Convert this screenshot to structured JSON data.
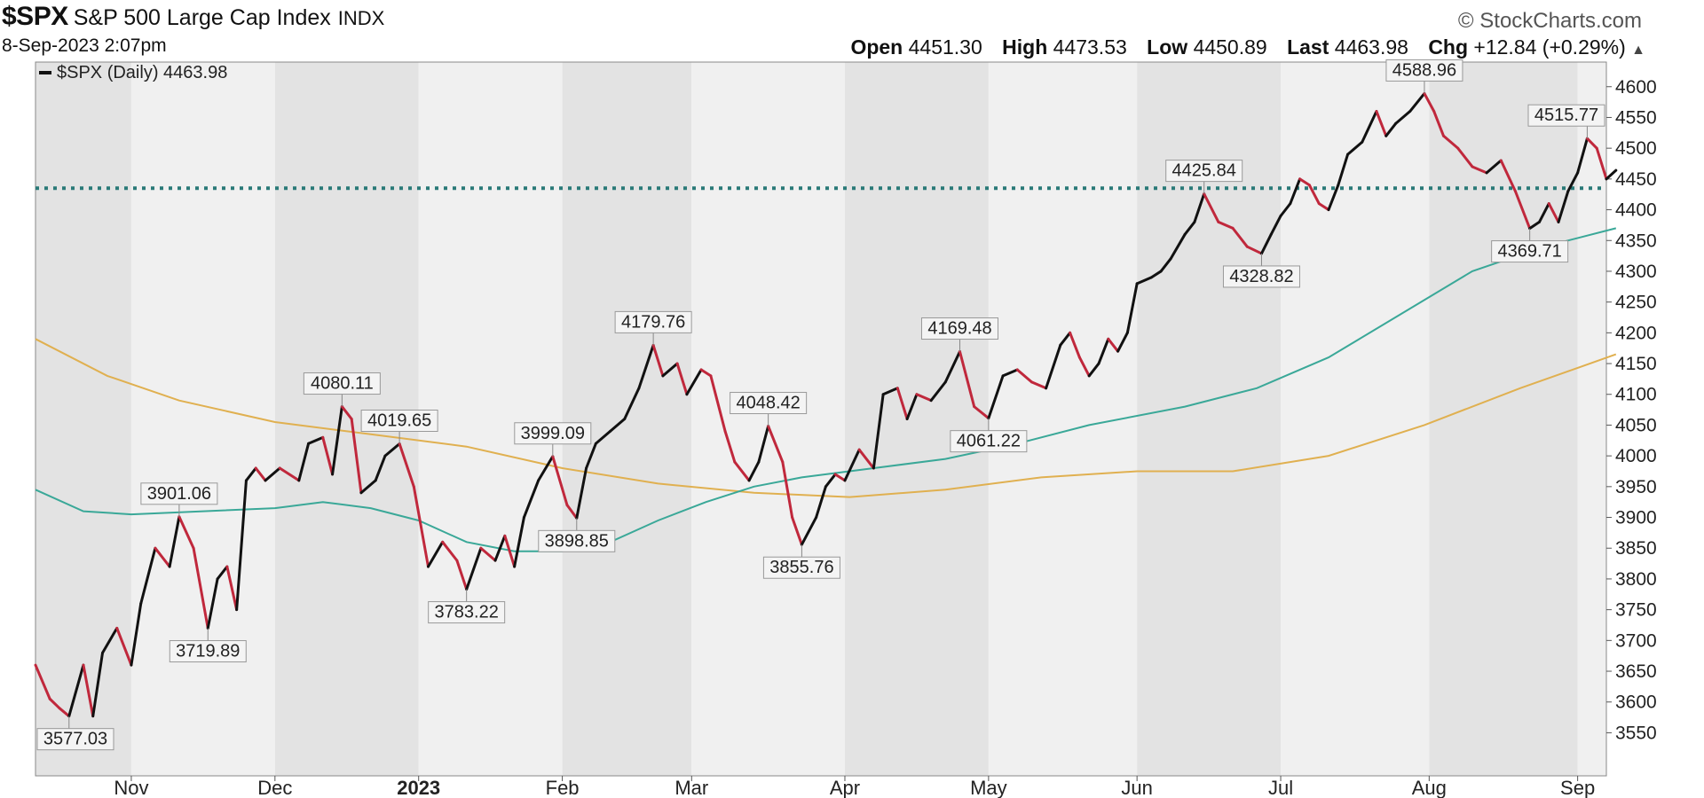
{
  "header": {
    "symbol": "$SPX",
    "name": "S&P 500 Large Cap Index",
    "exchange": "INDX",
    "timestamp": "8-Sep-2023 2:07pm",
    "brand": "© StockCharts.com",
    "open_label": "Open",
    "open": "4451.30",
    "high_label": "High",
    "high": "4473.53",
    "low_label": "Low",
    "low": "4450.89",
    "last_label": "Last",
    "last": "4463.98",
    "chg_label": "Chg",
    "chg": "+12.84 (+0.29%)",
    "chg_arrow": "▲"
  },
  "chart_data": {
    "type": "line",
    "legend": "$SPX (Daily) 4463.98",
    "legend_placement": "top-left",
    "ylim": [
      3480,
      4640
    ],
    "yticks": [
      3550,
      3600,
      3650,
      3700,
      3750,
      3800,
      3850,
      3900,
      3950,
      4000,
      4050,
      4100,
      4150,
      4200,
      4250,
      4300,
      4350,
      4400,
      4450,
      4500,
      4550,
      4600
    ],
    "xlim": [
      0,
      328
    ],
    "months": [
      {
        "label": "Nov",
        "start": 20
      },
      {
        "label": "Dec",
        "start": 50
      },
      {
        "label": "2023",
        "start": 80,
        "bold": true
      },
      {
        "label": "Feb",
        "start": 110
      },
      {
        "label": "Mar",
        "start": 137
      },
      {
        "label": "Apr",
        "start": 169
      },
      {
        "label": "May",
        "start": 199
      },
      {
        "label": "Jun",
        "start": 230
      },
      {
        "label": "Jul",
        "start": 260
      },
      {
        "label": "Aug",
        "start": 291
      },
      {
        "label": "Sep",
        "start": 322
      }
    ],
    "horizontal_line": {
      "value": 4435,
      "color": "#2a7a78",
      "style": "dotted"
    },
    "price": [
      [
        0,
        3660
      ],
      [
        3,
        3605
      ],
      [
        5,
        3590
      ],
      [
        7,
        3577.03
      ],
      [
        10,
        3660
      ],
      [
        12,
        3577
      ],
      [
        14,
        3680
      ],
      [
        17,
        3720
      ],
      [
        20,
        3660
      ],
      [
        22,
        3760
      ],
      [
        25,
        3850
      ],
      [
        28,
        3820
      ],
      [
        30,
        3901.06
      ],
      [
        33,
        3850
      ],
      [
        36,
        3719.89
      ],
      [
        38,
        3800
      ],
      [
        40,
        3820
      ],
      [
        42,
        3750
      ],
      [
        44,
        3960
      ],
      [
        46,
        3980
      ],
      [
        48,
        3960
      ],
      [
        51,
        3980
      ],
      [
        55,
        3960
      ],
      [
        57,
        4020
      ],
      [
        60,
        4030
      ],
      [
        62,
        3970
      ],
      [
        64,
        4080.11
      ],
      [
        66,
        4060
      ],
      [
        68,
        3940
      ],
      [
        71,
        3960
      ],
      [
        73,
        4000
      ],
      [
        76,
        4019.65
      ],
      [
        79,
        3950
      ],
      [
        82,
        3820
      ],
      [
        85,
        3860
      ],
      [
        88,
        3830
      ],
      [
        90,
        3783.22
      ],
      [
        93,
        3850
      ],
      [
        96,
        3830
      ],
      [
        98,
        3870
      ],
      [
        100,
        3820
      ],
      [
        102,
        3900
      ],
      [
        105,
        3960
      ],
      [
        108,
        3999.09
      ],
      [
        111,
        3920
      ],
      [
        113,
        3898.85
      ],
      [
        115,
        3980
      ],
      [
        117,
        4020
      ],
      [
        120,
        4040
      ],
      [
        123,
        4060
      ],
      [
        126,
        4110
      ],
      [
        129,
        4179.76
      ],
      [
        131,
        4130
      ],
      [
        134,
        4150
      ],
      [
        136,
        4100
      ],
      [
        139,
        4140
      ],
      [
        141,
        4130
      ],
      [
        144,
        4040
      ],
      [
        146,
        3990
      ],
      [
        149,
        3960
      ],
      [
        151,
        3990
      ],
      [
        153,
        4048.42
      ],
      [
        156,
        3990
      ],
      [
        158,
        3900
      ],
      [
        160,
        3855.76
      ],
      [
        163,
        3900
      ],
      [
        165,
        3950
      ],
      [
        167,
        3970
      ],
      [
        169,
        3960
      ],
      [
        172,
        4010
      ],
      [
        175,
        3980
      ],
      [
        177,
        4100
      ],
      [
        180,
        4110
      ],
      [
        182,
        4060
      ],
      [
        184,
        4100
      ],
      [
        187,
        4090
      ],
      [
        190,
        4120
      ],
      [
        193,
        4169.48
      ],
      [
        196,
        4080
      ],
      [
        199,
        4061.22
      ],
      [
        202,
        4130
      ],
      [
        205,
        4140
      ],
      [
        208,
        4120
      ],
      [
        211,
        4110
      ],
      [
        214,
        4180
      ],
      [
        216,
        4200
      ],
      [
        218,
        4160
      ],
      [
        220,
        4130
      ],
      [
        222,
        4150
      ],
      [
        224,
        4190
      ],
      [
        226,
        4170
      ],
      [
        228,
        4200
      ],
      [
        230,
        4280
      ],
      [
        233,
        4290
      ],
      [
        235,
        4300
      ],
      [
        237,
        4320
      ],
      [
        240,
        4360
      ],
      [
        242,
        4380
      ],
      [
        244,
        4425.84
      ],
      [
        247,
        4380
      ],
      [
        250,
        4370
      ],
      [
        253,
        4340
      ],
      [
        256,
        4328.82
      ],
      [
        258,
        4360
      ],
      [
        260,
        4390
      ],
      [
        262,
        4410
      ],
      [
        264,
        4450
      ],
      [
        266,
        4440
      ],
      [
        268,
        4410
      ],
      [
        270,
        4400
      ],
      [
        272,
        4440
      ],
      [
        274,
        4490
      ],
      [
        277,
        4510
      ],
      [
        280,
        4560
      ],
      [
        282,
        4520
      ],
      [
        284,
        4540
      ],
      [
        287,
        4560
      ],
      [
        290,
        4588.96
      ],
      [
        292,
        4560
      ],
      [
        294,
        4520
      ],
      [
        297,
        4500
      ],
      [
        300,
        4470
      ],
      [
        303,
        4460
      ],
      [
        306,
        4480
      ],
      [
        309,
        4430
      ],
      [
        312,
        4369.71
      ],
      [
        314,
        4380
      ],
      [
        316,
        4410
      ],
      [
        318,
        4380
      ],
      [
        320,
        4430
      ],
      [
        322,
        4460
      ],
      [
        324,
        4515.77
      ],
      [
        326,
        4500
      ],
      [
        328,
        4450
      ],
      [
        330,
        4463.98
      ]
    ],
    "peak_troughs": [
      {
        "x": 7,
        "value": 3577.03,
        "label": "3577.03",
        "pos": "below"
      },
      {
        "x": 30,
        "value": 3901.06,
        "label": "3901.06",
        "pos": "above"
      },
      {
        "x": 36,
        "value": 3719.89,
        "label": "3719.89",
        "pos": "below"
      },
      {
        "x": 64,
        "value": 4080.11,
        "label": "4080.11",
        "pos": "above"
      },
      {
        "x": 76,
        "value": 4019.65,
        "label": "4019.65",
        "pos": "above"
      },
      {
        "x": 90,
        "value": 3783.22,
        "label": "3783.22",
        "pos": "below"
      },
      {
        "x": 108,
        "value": 3999.09,
        "label": "3999.09",
        "pos": "above"
      },
      {
        "x": 113,
        "value": 3898.85,
        "label": "3898.85",
        "pos": "below"
      },
      {
        "x": 129,
        "value": 4179.76,
        "label": "4179.76",
        "pos": "above"
      },
      {
        "x": 153,
        "value": 4048.42,
        "label": "4048.42",
        "pos": "above"
      },
      {
        "x": 160,
        "value": 3855.76,
        "label": "3855.76",
        "pos": "below"
      },
      {
        "x": 193,
        "value": 4169.48,
        "label": "4169.48",
        "pos": "above"
      },
      {
        "x": 199,
        "value": 4061.22,
        "label": "4061.22",
        "pos": "below"
      },
      {
        "x": 244,
        "value": 4425.84,
        "label": "4425.84",
        "pos": "above"
      },
      {
        "x": 256,
        "value": 4328.82,
        "label": "4328.82",
        "pos": "below"
      },
      {
        "x": 290,
        "value": 4588.96,
        "label": "4588.96",
        "pos": "above"
      },
      {
        "x": 312,
        "value": 4369.71,
        "label": "4369.71",
        "pos": "below"
      },
      {
        "x": 324,
        "value": 4515.77,
        "label": "4515.77",
        "pos": "above"
      }
    ],
    "ma_short": {
      "color": "#3aa898",
      "points": [
        [
          0,
          3945
        ],
        [
          10,
          3910
        ],
        [
          20,
          3905
        ],
        [
          35,
          3910
        ],
        [
          50,
          3915
        ],
        [
          60,
          3925
        ],
        [
          70,
          3915
        ],
        [
          80,
          3895
        ],
        [
          90,
          3860
        ],
        [
          100,
          3845
        ],
        [
          110,
          3845
        ],
        [
          120,
          3860
        ],
        [
          130,
          3895
        ],
        [
          140,
          3925
        ],
        [
          150,
          3950
        ],
        [
          160,
          3965
        ],
        [
          175,
          3980
        ],
        [
          190,
          3995
        ],
        [
          205,
          4020
        ],
        [
          220,
          4050
        ],
        [
          240,
          4080
        ],
        [
          255,
          4110
        ],
        [
          270,
          4160
        ],
        [
          285,
          4230
        ],
        [
          300,
          4300
        ],
        [
          315,
          4340
        ],
        [
          330,
          4370
        ]
      ]
    },
    "ma_long": {
      "color": "#e0b050",
      "points": [
        [
          0,
          4190
        ],
        [
          15,
          4130
        ],
        [
          30,
          4090
        ],
        [
          50,
          4055
        ],
        [
          70,
          4035
        ],
        [
          90,
          4015
        ],
        [
          110,
          3980
        ],
        [
          130,
          3955
        ],
        [
          150,
          3940
        ],
        [
          170,
          3933
        ],
        [
          190,
          3945
        ],
        [
          210,
          3965
        ],
        [
          230,
          3975
        ],
        [
          250,
          3975
        ],
        [
          270,
          4000
        ],
        [
          290,
          4050
        ],
        [
          310,
          4110
        ],
        [
          330,
          4165
        ]
      ]
    }
  }
}
